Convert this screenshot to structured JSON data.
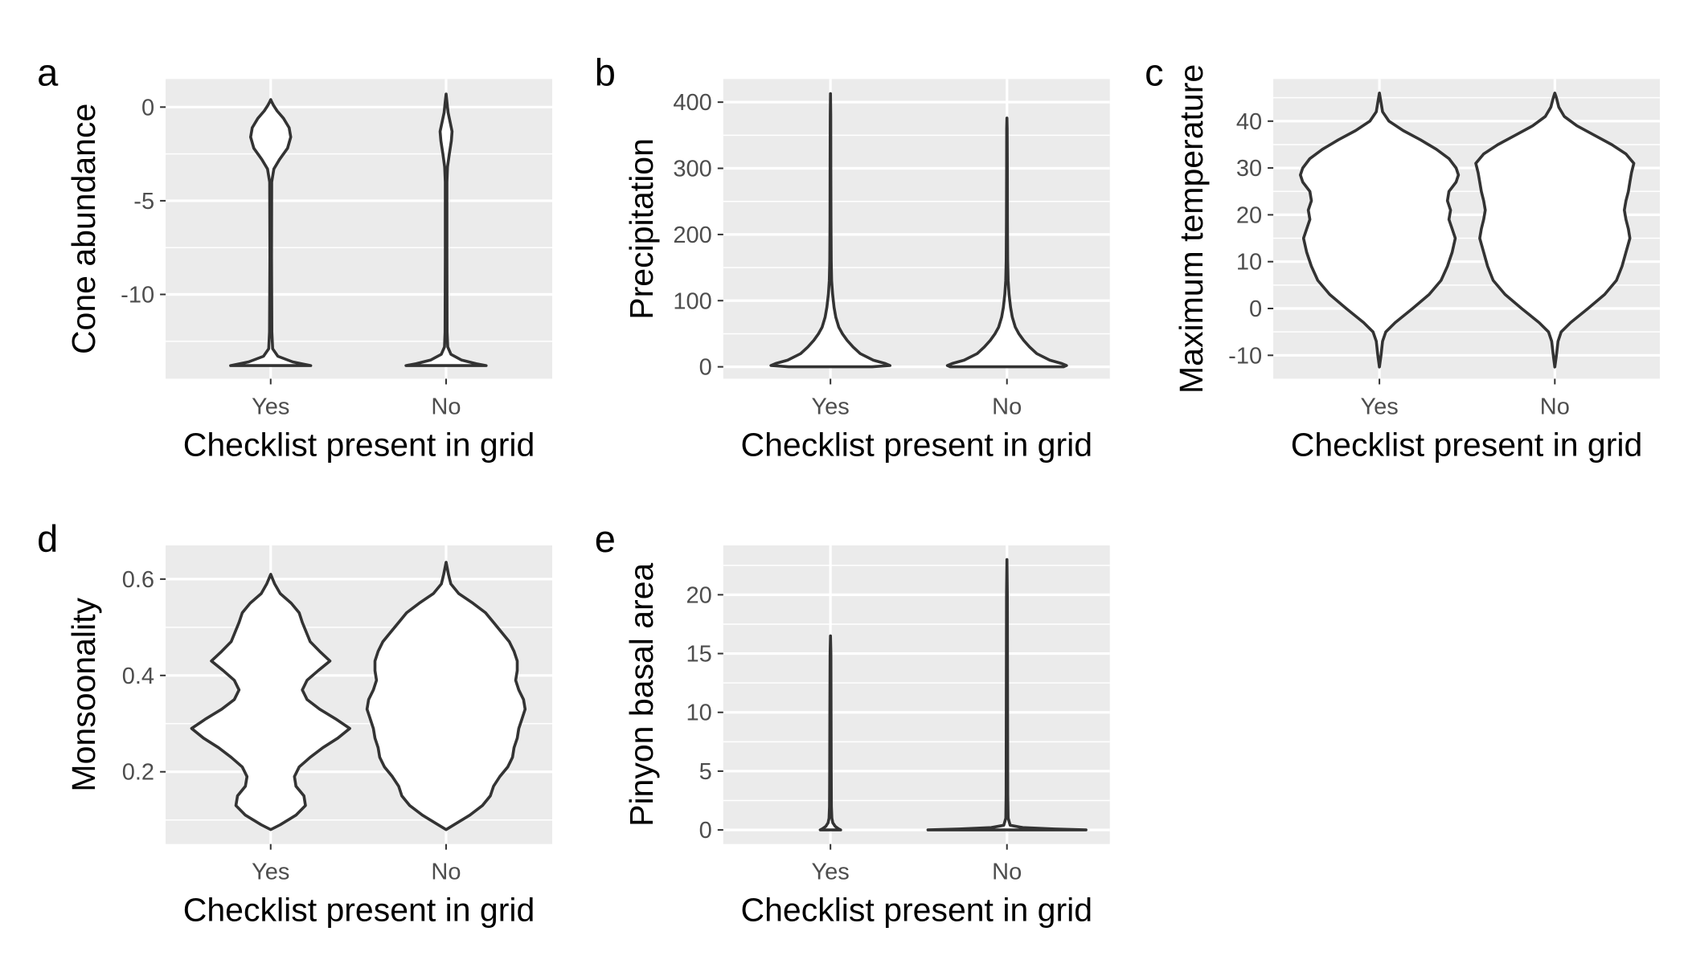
{
  "chart_data": [
    {
      "type": "violin",
      "panel_label": "a",
      "xlabel": "Checklist present in grid",
      "ylabel": "Cone abundance",
      "categories": [
        "Yes",
        "No"
      ],
      "ylim": [
        -14.5,
        1.5
      ],
      "yticks": [
        0,
        -5,
        -10
      ],
      "ytick_labels": [
        "0",
        "-5",
        "-10"
      ],
      "grid": true,
      "violins": [
        {
          "category": "Yes",
          "profile": [
            [
              -13.8,
              1.0
            ],
            [
              -13.6,
              0.55
            ],
            [
              -13.3,
              0.18
            ],
            [
              -12.9,
              0.05
            ],
            [
              -12,
              0.03
            ],
            [
              -8,
              0.02
            ],
            [
              -4,
              0.025
            ],
            [
              -3.3,
              0.08
            ],
            [
              -2.8,
              0.22
            ],
            [
              -2.2,
              0.42
            ],
            [
              -1.6,
              0.5
            ],
            [
              -1.1,
              0.46
            ],
            [
              -0.6,
              0.32
            ],
            [
              -0.2,
              0.16
            ],
            [
              0.1,
              0.07
            ],
            [
              0.3,
              0.02
            ],
            [
              0.4,
              0
            ]
          ]
        },
        {
          "category": "No",
          "profile": [
            [
              -13.8,
              1.0
            ],
            [
              -13.7,
              0.75
            ],
            [
              -13.5,
              0.38
            ],
            [
              -13.2,
              0.12
            ],
            [
              -12.8,
              0.04
            ],
            [
              -12,
              0.025
            ],
            [
              -8,
              0.02
            ],
            [
              -4,
              0.02
            ],
            [
              -3.2,
              0.035
            ],
            [
              -2.5,
              0.08
            ],
            [
              -1.8,
              0.13
            ],
            [
              -1.3,
              0.15
            ],
            [
              -0.8,
              0.1
            ],
            [
              -0.3,
              0.05
            ],
            [
              0.2,
              0.025
            ],
            [
              0.7,
              0
            ]
          ]
        }
      ]
    },
    {
      "type": "violin",
      "panel_label": "b",
      "xlabel": "Checklist present in grid",
      "ylabel": "Precipitation",
      "categories": [
        "Yes",
        "No"
      ],
      "ylim": [
        -18,
        435
      ],
      "yticks": [
        0,
        100,
        200,
        300,
        400
      ],
      "ytick_labels": [
        "0",
        "100",
        "200",
        "300",
        "400"
      ],
      "grid": true,
      "violins": [
        {
          "category": "Yes",
          "profile": [
            [
              0,
              0.7
            ],
            [
              2,
              1.0
            ],
            [
              5,
              0.92
            ],
            [
              10,
              0.72
            ],
            [
              20,
              0.5
            ],
            [
              30,
              0.38
            ],
            [
              40,
              0.28
            ],
            [
              50,
              0.2
            ],
            [
              60,
              0.14
            ],
            [
              75,
              0.09
            ],
            [
              90,
              0.06
            ],
            [
              110,
              0.035
            ],
            [
              130,
              0.02
            ],
            [
              160,
              0.012
            ],
            [
              220,
              0.008
            ],
            [
              300,
              0.006
            ],
            [
              380,
              0.004
            ],
            [
              413,
              0
            ]
          ]
        },
        {
          "category": "No",
          "profile": [
            [
              0,
              0.95
            ],
            [
              2,
              1.0
            ],
            [
              5,
              0.92
            ],
            [
              10,
              0.72
            ],
            [
              20,
              0.5
            ],
            [
              30,
              0.38
            ],
            [
              40,
              0.28
            ],
            [
              50,
              0.2
            ],
            [
              60,
              0.14
            ],
            [
              75,
              0.09
            ],
            [
              90,
              0.06
            ],
            [
              110,
              0.035
            ],
            [
              130,
              0.02
            ],
            [
              160,
              0.012
            ],
            [
              220,
              0.008
            ],
            [
              300,
              0.006
            ],
            [
              360,
              0.004
            ],
            [
              376,
              0
            ]
          ]
        }
      ]
    },
    {
      "type": "violin",
      "panel_label": "c",
      "xlabel": "Checklist present in grid",
      "ylabel": "Maximum temperature",
      "categories": [
        "Yes",
        "No"
      ],
      "ylim": [
        -15,
        49
      ],
      "yticks": [
        -10,
        0,
        10,
        20,
        30,
        40
      ],
      "ytick_labels": [
        "-10",
        "0",
        "10",
        "20",
        "30",
        "40"
      ],
      "grid": true,
      "violins": [
        {
          "category": "Yes",
          "profile": [
            [
              -12.5,
              0
            ],
            [
              -10,
              0.02
            ],
            [
              -7,
              0.04
            ],
            [
              -5,
              0.08
            ],
            [
              -3,
              0.2
            ],
            [
              0,
              0.42
            ],
            [
              3,
              0.63
            ],
            [
              6,
              0.78
            ],
            [
              9,
              0.86
            ],
            [
              12,
              0.92
            ],
            [
              15,
              0.96
            ],
            [
              17,
              0.92
            ],
            [
              19,
              0.88
            ],
            [
              21,
              0.9
            ],
            [
              23,
              0.86
            ],
            [
              25,
              0.88
            ],
            [
              27,
              0.97
            ],
            [
              28.5,
              1.0
            ],
            [
              30,
              0.97
            ],
            [
              32,
              0.88
            ],
            [
              34,
              0.72
            ],
            [
              36,
              0.52
            ],
            [
              38,
              0.3
            ],
            [
              40,
              0.12
            ],
            [
              42,
              0.04
            ],
            [
              44,
              0.02
            ],
            [
              46,
              0
            ]
          ]
        },
        {
          "category": "No",
          "profile": [
            [
              -12.5,
              0
            ],
            [
              -10,
              0.02
            ],
            [
              -7,
              0.04
            ],
            [
              -5,
              0.08
            ],
            [
              -3,
              0.2
            ],
            [
              0,
              0.42
            ],
            [
              3,
              0.63
            ],
            [
              6,
              0.78
            ],
            [
              9,
              0.85
            ],
            [
              12,
              0.9
            ],
            [
              15,
              0.95
            ],
            [
              17,
              0.93
            ],
            [
              19,
              0.9
            ],
            [
              21,
              0.88
            ],
            [
              23,
              0.9
            ],
            [
              25,
              0.93
            ],
            [
              27,
              0.95
            ],
            [
              29,
              0.97
            ],
            [
              31,
              1.0
            ],
            [
              33,
              0.9
            ],
            [
              35,
              0.72
            ],
            [
              37,
              0.5
            ],
            [
              39,
              0.28
            ],
            [
              41,
              0.12
            ],
            [
              43,
              0.05
            ],
            [
              45,
              0.02
            ],
            [
              46,
              0
            ]
          ]
        }
      ]
    },
    {
      "type": "violin",
      "panel_label": "d",
      "xlabel": "Checklist present in grid",
      "ylabel": "Monsoonality",
      "categories": [
        "Yes",
        "No"
      ],
      "ylim": [
        0.05,
        0.67
      ],
      "yticks": [
        0.2,
        0.4,
        0.6
      ],
      "ytick_labels": [
        "0.2",
        "0.4",
        "0.6"
      ],
      "grid": true,
      "violins": [
        {
          "category": "Yes",
          "profile": [
            [
              0.08,
              0
            ],
            [
              0.09,
              0.12
            ],
            [
              0.11,
              0.32
            ],
            [
              0.13,
              0.44
            ],
            [
              0.15,
              0.42
            ],
            [
              0.17,
              0.32
            ],
            [
              0.19,
              0.3
            ],
            [
              0.21,
              0.36
            ],
            [
              0.23,
              0.5
            ],
            [
              0.25,
              0.66
            ],
            [
              0.27,
              0.85
            ],
            [
              0.29,
              1.0
            ],
            [
              0.31,
              0.82
            ],
            [
              0.33,
              0.62
            ],
            [
              0.35,
              0.46
            ],
            [
              0.37,
              0.4
            ],
            [
              0.39,
              0.46
            ],
            [
              0.41,
              0.6
            ],
            [
              0.43,
              0.75
            ],
            [
              0.45,
              0.62
            ],
            [
              0.47,
              0.5
            ],
            [
              0.49,
              0.45
            ],
            [
              0.51,
              0.4
            ],
            [
              0.53,
              0.36
            ],
            [
              0.55,
              0.26
            ],
            [
              0.57,
              0.12
            ],
            [
              0.59,
              0.05
            ],
            [
              0.61,
              0
            ]
          ]
        },
        {
          "category": "No",
          "profile": [
            [
              0.08,
              0
            ],
            [
              0.09,
              0.1
            ],
            [
              0.11,
              0.3
            ],
            [
              0.13,
              0.46
            ],
            [
              0.15,
              0.56
            ],
            [
              0.17,
              0.6
            ],
            [
              0.19,
              0.68
            ],
            [
              0.21,
              0.78
            ],
            [
              0.23,
              0.84
            ],
            [
              0.25,
              0.86
            ],
            [
              0.27,
              0.9
            ],
            [
              0.29,
              0.92
            ],
            [
              0.31,
              0.96
            ],
            [
              0.33,
              1.0
            ],
            [
              0.35,
              0.98
            ],
            [
              0.37,
              0.92
            ],
            [
              0.39,
              0.88
            ],
            [
              0.41,
              0.9
            ],
            [
              0.43,
              0.9
            ],
            [
              0.45,
              0.86
            ],
            [
              0.47,
              0.8
            ],
            [
              0.49,
              0.7
            ],
            [
              0.51,
              0.6
            ],
            [
              0.53,
              0.5
            ],
            [
              0.55,
              0.34
            ],
            [
              0.57,
              0.16
            ],
            [
              0.59,
              0.06
            ],
            [
              0.61,
              0.03
            ],
            [
              0.635,
              0
            ]
          ]
        }
      ]
    },
    {
      "type": "violin",
      "panel_label": "e",
      "xlabel": "Checklist present in grid",
      "ylabel": "Pinyon basal area",
      "categories": [
        "Yes",
        "No"
      ],
      "ylim": [
        -1.2,
        24.2
      ],
      "yticks": [
        0,
        5,
        10,
        15,
        20
      ],
      "ytick_labels": [
        "0",
        "5",
        "10",
        "15",
        "20"
      ],
      "grid": true,
      "violins": [
        {
          "category": "Yes",
          "profile": [
            [
              0,
              0.13
            ],
            [
              0.1,
              0.1
            ],
            [
              0.3,
              0.06
            ],
            [
              0.6,
              0.03
            ],
            [
              1,
              0.018
            ],
            [
              2,
              0.012
            ],
            [
              5,
              0.01
            ],
            [
              10,
              0.008
            ],
            [
              15,
              0.005
            ],
            [
              16.5,
              0
            ]
          ]
        },
        {
          "category": "No",
          "profile": [
            [
              0,
              1.0
            ],
            [
              0.08,
              0.6
            ],
            [
              0.2,
              0.2
            ],
            [
              0.4,
              0.04
            ],
            [
              1,
              0.015
            ],
            [
              3,
              0.01
            ],
            [
              10,
              0.008
            ],
            [
              20,
              0.005
            ],
            [
              23,
              0
            ]
          ]
        }
      ]
    }
  ]
}
